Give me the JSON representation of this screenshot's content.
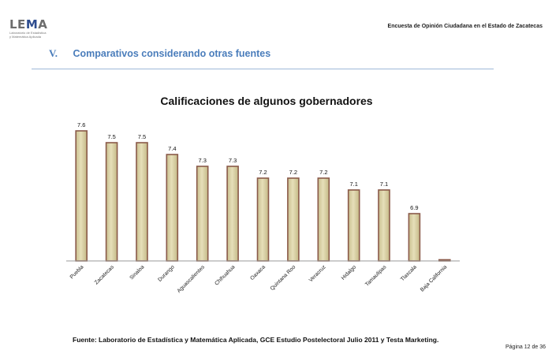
{
  "header": {
    "logo_text": "LEMA",
    "logo_sub_1": "Laboratorio de Estadística",
    "logo_sub_2": "y Matemática Aplicada",
    "report_title": "Encuesta de Opinión Ciudadana en el Estado de Zacatecas"
  },
  "section": {
    "number": "V.",
    "title": "Comparativos considerando otras fuentes"
  },
  "footer": {
    "source": "Fuente: Laboratorio de Estadística y Matemática Aplicada, GCE Estudio Postelectoral Julio 2011 y Testa Marketing.",
    "page": "Página 12 de 36"
  },
  "colors": {
    "bar_fill": "#d9d1a6",
    "bar_stroke": "#8a5a49",
    "section_title": "#4a7dbb",
    "rule": "#9fb8d8"
  },
  "chart_data": {
    "type": "bar",
    "title": "Calificaciones de algunos gobernadores",
    "xlabel": "",
    "ylabel": "",
    "categories": [
      "Puebla",
      "Zacatecas",
      "Sinaloa",
      "Durango",
      "Aguascalientes",
      "Chihuahua",
      "Oaxaca",
      "Quintana Roo",
      "Veracruz",
      "Hidalgo",
      "Tamaulipas",
      "Tlaxcala",
      "Baja California"
    ],
    "values": [
      7.6,
      7.5,
      7.5,
      7.4,
      7.3,
      7.3,
      7.2,
      7.2,
      7.2,
      7.1,
      7.1,
      6.9,
      null
    ],
    "data_labels": [
      "7.6",
      "7.5",
      "7.5",
      "7.4",
      "7.3",
      "7.3",
      "7.2",
      "7.2",
      "7.2",
      "7.1",
      "7.1",
      "6.9",
      ""
    ],
    "ylim": [
      6.5,
      7.6
    ],
    "grid": false,
    "legend": "none"
  }
}
